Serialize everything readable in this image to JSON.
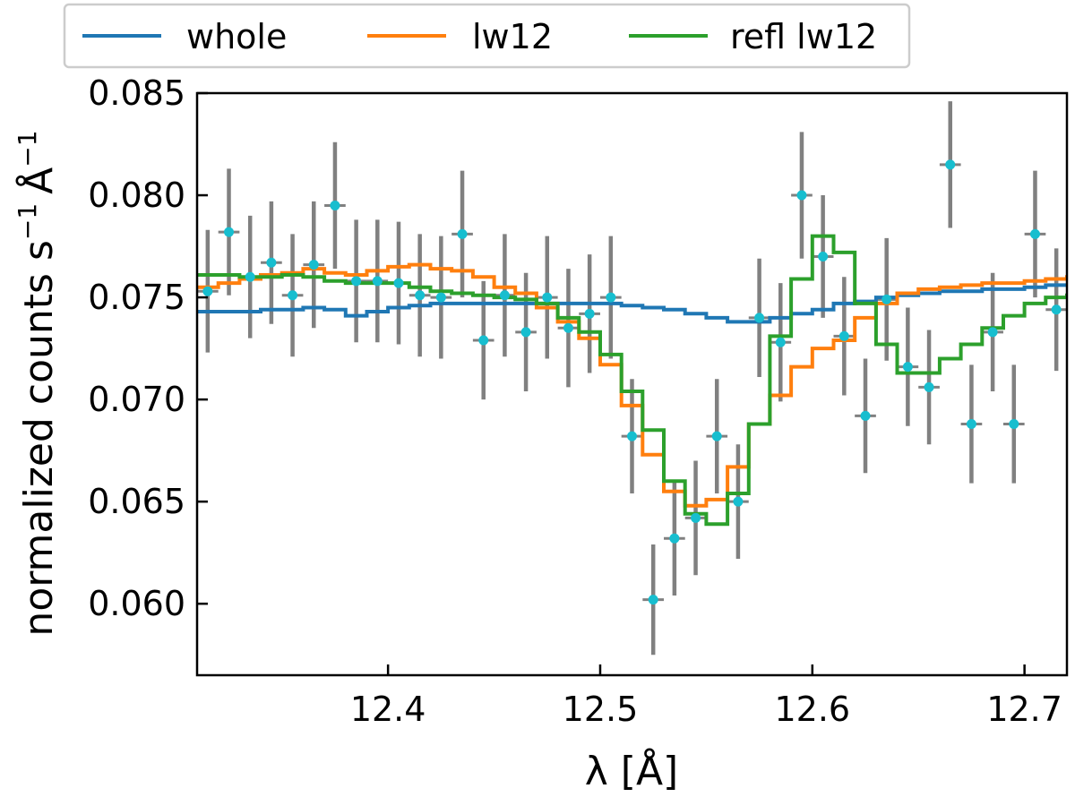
{
  "chart_data": {
    "type": "line",
    "xlabel": "λ [Å]",
    "ylabel": "normalized counts s",
    "ylabel_sup1": "−1",
    "ylabel_unit": "Å",
    "ylabel_sup2": "−1",
    "xlim": [
      12.31,
      12.72
    ],
    "ylim": [
      0.0565,
      0.085
    ],
    "xticks": [
      12.4,
      12.5,
      12.6,
      12.7
    ],
    "xtick_labels": [
      "12.4",
      "12.5",
      "12.6",
      "12.7"
    ],
    "yticks": [
      0.06,
      0.065,
      0.07,
      0.075,
      0.08,
      0.085
    ],
    "ytick_labels": [
      "0.060",
      "0.065",
      "0.070",
      "0.075",
      "0.080",
      "0.085"
    ],
    "legend": {
      "placement": "top-left, above plot",
      "entries": [
        {
          "label": "whole",
          "color": "#1f77b4"
        },
        {
          "label": "lw12",
          "color": "#ff7f0e"
        },
        {
          "label": "refl lw12",
          "color": "#2ca02c"
        }
      ]
    },
    "bin_width": 0.01,
    "series": [
      {
        "name": "whole",
        "color": "#1f77b4",
        "style": "step",
        "x": [
          12.31,
          12.32,
          12.33,
          12.34,
          12.35,
          12.36,
          12.37,
          12.38,
          12.39,
          12.4,
          12.41,
          12.42,
          12.43,
          12.44,
          12.45,
          12.46,
          12.47,
          12.48,
          12.49,
          12.5,
          12.51,
          12.52,
          12.53,
          12.54,
          12.55,
          12.56,
          12.57,
          12.58,
          12.59,
          12.6,
          12.61,
          12.62,
          12.63,
          12.64,
          12.65,
          12.66,
          12.67,
          12.68,
          12.69,
          12.7,
          12.71,
          12.72
        ],
        "y": [
          0.0743,
          0.0743,
          0.0743,
          0.0744,
          0.0744,
          0.0745,
          0.0744,
          0.0741,
          0.0743,
          0.0745,
          0.0746,
          0.0747,
          0.0747,
          0.0747,
          0.0747,
          0.0747,
          0.0747,
          0.0747,
          0.0747,
          0.0747,
          0.0746,
          0.0745,
          0.0744,
          0.0742,
          0.074,
          0.0738,
          0.0738,
          0.074,
          0.0742,
          0.0744,
          0.0747,
          0.0748,
          0.075,
          0.0751,
          0.0752,
          0.0753,
          0.0753,
          0.0754,
          0.0754,
          0.0755,
          0.0756,
          0.0756
        ]
      },
      {
        "name": "lw12",
        "color": "#ff7f0e",
        "style": "step",
        "x": [
          12.31,
          12.32,
          12.33,
          12.34,
          12.35,
          12.36,
          12.37,
          12.38,
          12.39,
          12.4,
          12.41,
          12.42,
          12.43,
          12.44,
          12.45,
          12.46,
          12.47,
          12.48,
          12.49,
          12.5,
          12.51,
          12.52,
          12.53,
          12.54,
          12.55,
          12.56,
          12.57,
          12.58,
          12.59,
          12.6,
          12.61,
          12.62,
          12.63,
          12.64,
          12.65,
          12.66,
          12.67,
          12.68,
          12.69,
          12.7,
          12.71,
          12.72
        ],
        "y": [
          0.0755,
          0.0757,
          0.0759,
          0.0761,
          0.0762,
          0.0764,
          0.0762,
          0.0761,
          0.0763,
          0.0765,
          0.0766,
          0.0764,
          0.0763,
          0.076,
          0.0755,
          0.0752,
          0.0745,
          0.0738,
          0.073,
          0.0717,
          0.0697,
          0.0673,
          0.0655,
          0.0648,
          0.0651,
          0.0667,
          0.0688,
          0.0702,
          0.0716,
          0.0725,
          0.0729,
          0.074,
          0.0747,
          0.0752,
          0.0754,
          0.0755,
          0.0756,
          0.0757,
          0.0757,
          0.0758,
          0.0759,
          0.076
        ]
      },
      {
        "name": "refl lw12",
        "color": "#2ca02c",
        "style": "step",
        "x": [
          12.31,
          12.32,
          12.33,
          12.34,
          12.35,
          12.36,
          12.37,
          12.38,
          12.39,
          12.4,
          12.41,
          12.42,
          12.43,
          12.44,
          12.45,
          12.46,
          12.47,
          12.48,
          12.49,
          12.5,
          12.51,
          12.52,
          12.53,
          12.54,
          12.55,
          12.56,
          12.57,
          12.58,
          12.59,
          12.6,
          12.61,
          12.62,
          12.63,
          12.64,
          12.65,
          12.66,
          12.67,
          12.68,
          12.69,
          12.7,
          12.71,
          12.72
        ],
        "y": [
          0.0761,
          0.0761,
          0.076,
          0.076,
          0.0761,
          0.076,
          0.0758,
          0.0757,
          0.0757,
          0.0757,
          0.0755,
          0.0753,
          0.0752,
          0.0751,
          0.075,
          0.0749,
          0.0747,
          0.074,
          0.0733,
          0.0722,
          0.0704,
          0.0685,
          0.066,
          0.0644,
          0.0639,
          0.0654,
          0.0688,
          0.0731,
          0.0759,
          0.078,
          0.0772,
          0.0747,
          0.0727,
          0.0713,
          0.0713,
          0.072,
          0.0727,
          0.0735,
          0.0741,
          0.0747,
          0.075,
          0.0751
        ]
      }
    ],
    "data_points": {
      "marker_color": "#17becf",
      "errorbar_color": "#808080",
      "x": [
        12.315,
        12.325,
        12.335,
        12.345,
        12.355,
        12.365,
        12.375,
        12.385,
        12.395,
        12.405,
        12.415,
        12.425,
        12.435,
        12.445,
        12.455,
        12.465,
        12.475,
        12.485,
        12.495,
        12.505,
        12.515,
        12.525,
        12.535,
        12.545,
        12.555,
        12.565,
        12.575,
        12.585,
        12.595,
        12.605,
        12.615,
        12.625,
        12.635,
        12.645,
        12.655,
        12.665,
        12.675,
        12.685,
        12.695,
        12.705,
        12.715
      ],
      "y": [
        0.0753,
        0.0782,
        0.076,
        0.0767,
        0.0751,
        0.0766,
        0.0795,
        0.0758,
        0.0758,
        0.0757,
        0.0751,
        0.075,
        0.0781,
        0.0729,
        0.0751,
        0.0733,
        0.075,
        0.0735,
        0.0742,
        0.075,
        0.0682,
        0.0602,
        0.0632,
        0.0642,
        0.0682,
        0.065,
        0.074,
        0.0728,
        0.08,
        0.077,
        0.0731,
        0.0692,
        0.0749,
        0.0716,
        0.0706,
        0.0815,
        0.0688,
        0.0733,
        0.0688,
        0.0781,
        0.0744
      ],
      "yerr": [
        0.003,
        0.0031,
        0.003,
        0.003,
        0.003,
        0.0031,
        0.0031,
        0.003,
        0.003,
        0.003,
        0.003,
        0.003,
        0.0031,
        0.0029,
        0.003,
        0.0029,
        0.003,
        0.0029,
        0.0029,
        0.003,
        0.0028,
        0.0027,
        0.0028,
        0.0028,
        0.0028,
        0.0028,
        0.0029,
        0.0029,
        0.0031,
        0.003,
        0.0029,
        0.0028,
        0.003,
        0.0029,
        0.0028,
        0.0031,
        0.0029,
        0.0029,
        0.0029,
        0.0031,
        0.003
      ],
      "xerr": 0.005
    }
  }
}
